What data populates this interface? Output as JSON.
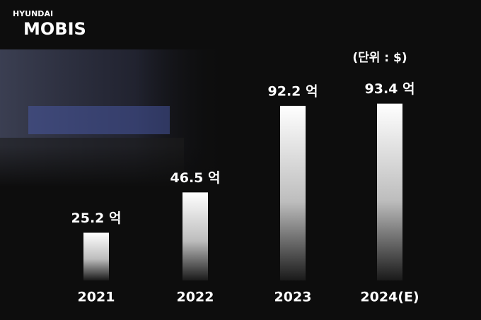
{
  "logo": {
    "top": "HYUNDAI",
    "main": "MOBIS"
  },
  "chart_data": {
    "type": "bar",
    "subtitle": "(단위 : $)",
    "categories": [
      "2021",
      "2022",
      "2023",
      "2024(E)"
    ],
    "values": [
      25.2,
      46.5,
      92.2,
      93.4
    ],
    "value_labels": [
      "25.2 억",
      "46.5 억",
      "92.2 억",
      "93.4 억"
    ],
    "color": "#ffffff"
  }
}
